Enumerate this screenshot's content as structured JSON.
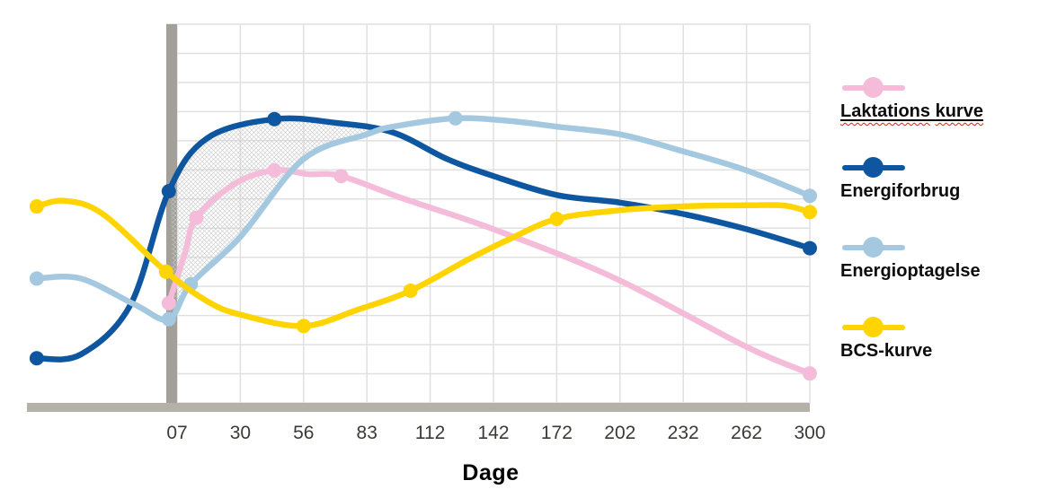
{
  "chart_data": {
    "type": "line",
    "title": "",
    "xlabel": "Dage",
    "ylabel": "",
    "x_ticks": [
      "07",
      "30",
      "56",
      "83",
      "112",
      "142",
      "172",
      "202",
      "232",
      "262",
      "300"
    ],
    "x_tick_days": [
      7,
      30,
      56,
      83,
      112,
      142,
      172,
      202,
      232,
      262,
      300
    ],
    "y_axis_visible": false,
    "y_unit": "relative level (0-100, no y-axis shown)",
    "ylim": [
      0,
      100
    ],
    "grid": true,
    "legend_position": "right",
    "note_pre_calving": "curves start about 45 days before day 0 (dry period), outside the gridded area",
    "shaded_region": {
      "between": [
        "Energiforbrug",
        "Energioptagelse"
      ],
      "style": "gray crosshatch",
      "day_range": [
        5,
        90
      ],
      "meaning": "energy deficit in early lactation"
    },
    "series": [
      {
        "name": "Laktations kurve",
        "color": "#f4bcd9",
        "points": [
          {
            "day": 4,
            "value": 26.5,
            "marker": true
          },
          {
            "day": 10,
            "value": 40
          },
          {
            "day": 14,
            "value": 49,
            "marker": true
          },
          {
            "day": 28,
            "value": 58
          },
          {
            "day": 44,
            "value": 61.5,
            "marker": true
          },
          {
            "day": 58,
            "value": 60.5
          },
          {
            "day": 72,
            "value": 60,
            "marker": true
          },
          {
            "day": 100,
            "value": 54
          },
          {
            "day": 142,
            "value": 46
          },
          {
            "day": 200,
            "value": 33
          },
          {
            "day": 262,
            "value": 15
          },
          {
            "day": 300,
            "value": 8,
            "marker": true
          }
        ]
      },
      {
        "name": "Energiforbrug",
        "color": "#0f56a0",
        "points": [
          {
            "day": -44,
            "value": 12,
            "marker": true
          },
          {
            "day": -28,
            "value": 13
          },
          {
            "day": -10,
            "value": 26
          },
          {
            "day": 4,
            "value": 56,
            "marker": true
          },
          {
            "day": 18,
            "value": 70
          },
          {
            "day": 44,
            "value": 75,
            "marker": true
          },
          {
            "day": 70,
            "value": 74
          },
          {
            "day": 95,
            "value": 71.5
          },
          {
            "day": 120,
            "value": 64.5
          },
          {
            "day": 142,
            "value": 60
          },
          {
            "day": 172,
            "value": 55
          },
          {
            "day": 202,
            "value": 53
          },
          {
            "day": 232,
            "value": 50
          },
          {
            "day": 262,
            "value": 46
          },
          {
            "day": 300,
            "value": 41,
            "marker": true
          }
        ]
      },
      {
        "name": "Energioptagelse",
        "color": "#a4c8df",
        "points": [
          {
            "day": -44,
            "value": 33,
            "marker": true
          },
          {
            "day": -28,
            "value": 33
          },
          {
            "day": -8,
            "value": 26
          },
          {
            "day": 4,
            "value": 22.3,
            "marker": true
          },
          {
            "day": 12,
            "value": 31.5,
            "marker": true
          },
          {
            "day": 30,
            "value": 44
          },
          {
            "day": 56,
            "value": 64.5
          },
          {
            "day": 83,
            "value": 71
          },
          {
            "day": 95,
            "value": 73
          },
          {
            "day": 124,
            "value": 75.2,
            "marker": true
          },
          {
            "day": 150,
            "value": 74.5
          },
          {
            "day": 172,
            "value": 73
          },
          {
            "day": 202,
            "value": 71
          },
          {
            "day": 232,
            "value": 66.5
          },
          {
            "day": 262,
            "value": 61.5
          },
          {
            "day": 300,
            "value": 54.8,
            "marker": true
          }
        ]
      },
      {
        "name": "BCS-kurve",
        "color": "#ffd401",
        "points": [
          {
            "day": -44,
            "value": 52,
            "marker": true
          },
          {
            "day": -34,
            "value": 53.5
          },
          {
            "day": -20,
            "value": 50
          },
          {
            "day": 3,
            "value": 34.8,
            "marker": true
          },
          {
            "day": 18,
            "value": 27
          },
          {
            "day": 30,
            "value": 23.5
          },
          {
            "day": 56,
            "value": 20.5,
            "marker": true
          },
          {
            "day": 80,
            "value": 25
          },
          {
            "day": 103,
            "value": 29.8,
            "marker": true
          },
          {
            "day": 130,
            "value": 38
          },
          {
            "day": 150,
            "value": 43.5
          },
          {
            "day": 172,
            "value": 48.7,
            "marker": true
          },
          {
            "day": 202,
            "value": 51
          },
          {
            "day": 232,
            "value": 52
          },
          {
            "day": 262,
            "value": 52.3
          },
          {
            "day": 285,
            "value": 52.2
          },
          {
            "day": 300,
            "value": 50.5,
            "marker": true
          }
        ]
      }
    ],
    "colors": {
      "grid": "#e0e0e0",
      "axis_vertical_bar": "#a2a099",
      "axis_horizontal_bar": "#b4b1a8",
      "hatch": "#c8c8c8",
      "tick_text": "#3c3a36"
    }
  },
  "legend": {
    "items": [
      {
        "label": "Laktations kurve",
        "words": [
          "Laktations",
          "kurve"
        ],
        "color": "#f4bcd9",
        "underlined": true,
        "spellcheck_squiggle": true
      },
      {
        "label": "Energiforbrug",
        "color": "#0f56a0"
      },
      {
        "label": "Energioptagelse",
        "color": "#a4c8df"
      },
      {
        "label": "BCS-kurve",
        "color": "#ffd401"
      }
    ]
  }
}
